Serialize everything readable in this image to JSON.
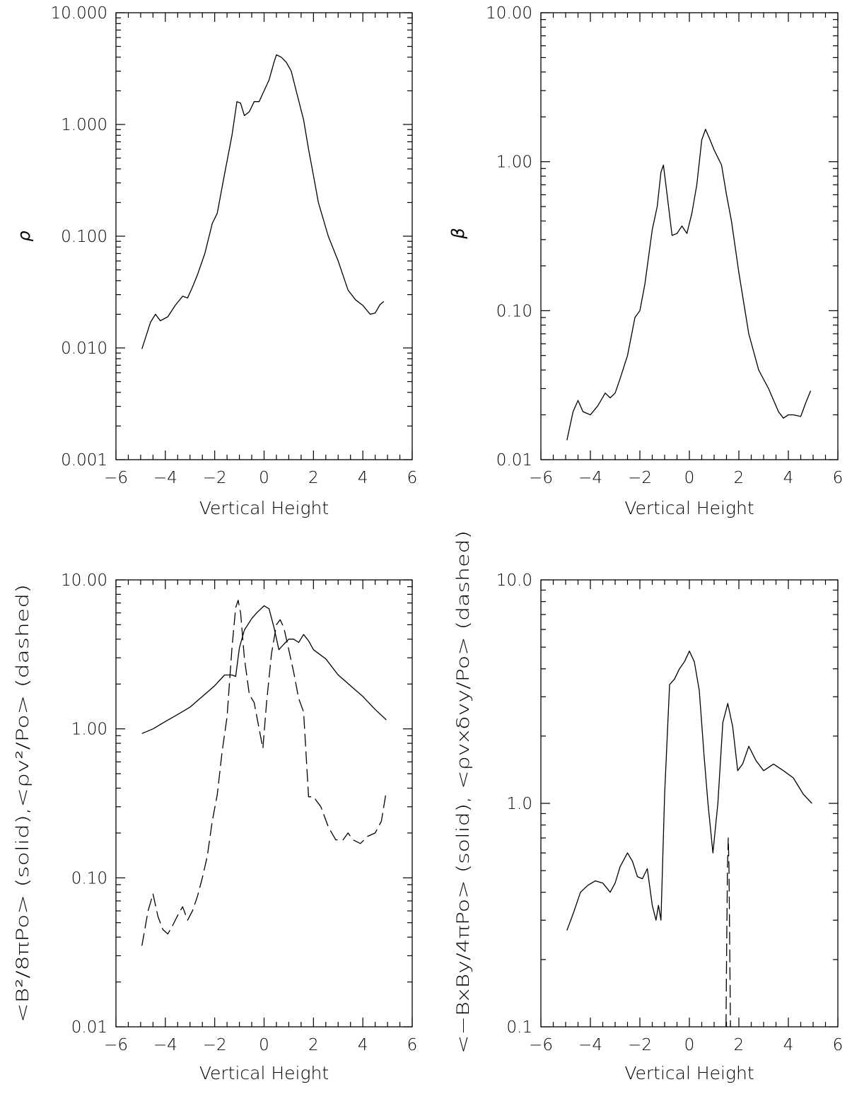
{
  "chart_data": [
    {
      "type": "line",
      "panel": "top-left",
      "title": "",
      "xlabel": "Vertical Height",
      "ylabel": "ρ",
      "yscale": "log",
      "xlim": [
        -6,
        6
      ],
      "ylim": [
        0.001,
        10
      ],
      "x_tick_values": [
        -6,
        -4,
        -2,
        0,
        2,
        4,
        6
      ],
      "x_tick_labels": [
        "−6",
        "−4",
        "−2",
        "0",
        "2",
        "4",
        "6"
      ],
      "y_tick_values": [
        0.001,
        0.01,
        0.1,
        1,
        10
      ],
      "y_tick_labels": [
        "0.001",
        "0.010",
        "0.100",
        "1.000",
        "10.000"
      ],
      "series": [
        {
          "name": "ρ",
          "style": "solid",
          "x": [
            -4.95,
            -4.6,
            -4.4,
            -4.2,
            -3.9,
            -3.6,
            -3.3,
            -3.1,
            -2.9,
            -2.7,
            -2.4,
            -2.1,
            -1.9,
            -1.6,
            -1.3,
            -1.1,
            -0.95,
            -0.8,
            -0.6,
            -0.4,
            -0.2,
            0.0,
            0.2,
            0.4,
            0.5,
            0.7,
            0.9,
            1.1,
            1.3,
            1.6,
            1.8,
            2.0,
            2.2,
            2.6,
            3.0,
            3.4,
            3.7,
            4.0,
            4.3,
            4.5,
            4.7,
            4.85
          ],
          "y": [
            0.0098,
            0.017,
            0.02,
            0.0175,
            0.019,
            0.024,
            0.029,
            0.028,
            0.035,
            0.045,
            0.07,
            0.13,
            0.16,
            0.36,
            0.8,
            1.6,
            1.55,
            1.2,
            1.3,
            1.6,
            1.6,
            2.0,
            2.5,
            3.6,
            4.2,
            4.0,
            3.6,
            3.0,
            2.0,
            1.1,
            0.6,
            0.35,
            0.2,
            0.1,
            0.06,
            0.033,
            0.027,
            0.024,
            0.02,
            0.0205,
            0.0245,
            0.026
          ]
        }
      ]
    },
    {
      "type": "line",
      "panel": "top-right",
      "title": "",
      "xlabel": "Vertical Height",
      "ylabel": "β",
      "yscale": "log",
      "xlim": [
        -6,
        6
      ],
      "ylim": [
        0.01,
        10
      ],
      "x_tick_values": [
        -6,
        -4,
        -2,
        0,
        2,
        4,
        6
      ],
      "x_tick_labels": [
        "−6",
        "−4",
        "−2",
        "0",
        "2",
        "4",
        "6"
      ],
      "y_tick_values": [
        0.01,
        0.1,
        1,
        10
      ],
      "y_tick_labels": [
        "0.01",
        "0.10",
        "1.00",
        "10.00"
      ],
      "series": [
        {
          "name": "β",
          "style": "solid",
          "x": [
            -4.95,
            -4.7,
            -4.5,
            -4.3,
            -4.0,
            -3.7,
            -3.4,
            -3.2,
            -3.0,
            -2.8,
            -2.5,
            -2.2,
            -2.0,
            -1.8,
            -1.5,
            -1.3,
            -1.15,
            -1.05,
            -0.9,
            -0.7,
            -0.5,
            -0.3,
            -0.1,
            0.1,
            0.3,
            0.5,
            0.65,
            0.8,
            1.0,
            1.3,
            1.5,
            1.7,
            2.0,
            2.4,
            2.8,
            3.2,
            3.6,
            3.8,
            4.0,
            4.2,
            4.5,
            4.7,
            4.9
          ],
          "y": [
            0.0135,
            0.021,
            0.025,
            0.021,
            0.02,
            0.023,
            0.028,
            0.026,
            0.028,
            0.035,
            0.05,
            0.09,
            0.1,
            0.15,
            0.35,
            0.5,
            0.85,
            0.95,
            0.6,
            0.32,
            0.33,
            0.37,
            0.33,
            0.45,
            0.7,
            1.4,
            1.65,
            1.45,
            1.2,
            0.95,
            0.6,
            0.4,
            0.18,
            0.07,
            0.04,
            0.03,
            0.021,
            0.019,
            0.02,
            0.02,
            0.0195,
            0.024,
            0.029
          ]
        }
      ]
    },
    {
      "type": "line",
      "panel": "bottom-left",
      "title": "",
      "xlabel": "Vertical Height",
      "ylabel": "<B²/8πPo> (solid),<ρv²/Po> (dashed)",
      "yscale": "log",
      "xlim": [
        -6,
        6
      ],
      "ylim": [
        0.01,
        10
      ],
      "x_tick_values": [
        -6,
        -4,
        -2,
        0,
        2,
        4,
        6
      ],
      "x_tick_labels": [
        "−6",
        "−4",
        "−2",
        "0",
        "2",
        "4",
        "6"
      ],
      "y_tick_values": [
        0.01,
        0.1,
        1,
        10
      ],
      "y_tick_labels": [
        "0.01",
        "0.10",
        "1.00",
        "10.00"
      ],
      "series": [
        {
          "name": "<B²/8πPo>",
          "style": "solid",
          "x": [
            -4.95,
            -4.5,
            -4.0,
            -3.5,
            -3.0,
            -2.5,
            -2.0,
            -1.6,
            -1.3,
            -1.15,
            -1.0,
            -0.8,
            -0.5,
            -0.3,
            0.0,
            0.2,
            0.4,
            0.6,
            0.8,
            1.0,
            1.2,
            1.4,
            1.6,
            1.8,
            2.0,
            2.5,
            3.0,
            3.5,
            4.0,
            4.5,
            4.95
          ],
          "y": [
            0.93,
            1.0,
            1.12,
            1.25,
            1.4,
            1.65,
            1.95,
            2.3,
            2.3,
            2.25,
            3.5,
            4.6,
            5.5,
            6.0,
            6.7,
            6.4,
            4.8,
            3.4,
            3.7,
            4.0,
            4.0,
            3.8,
            4.3,
            3.9,
            3.4,
            2.95,
            2.3,
            1.95,
            1.65,
            1.35,
            1.15
          ]
        },
        {
          "name": "<ρv²/Po>",
          "style": "dashed",
          "x": [
            -4.95,
            -4.7,
            -4.5,
            -4.3,
            -4.1,
            -3.9,
            -3.7,
            -3.5,
            -3.3,
            -3.1,
            -2.9,
            -2.7,
            -2.5,
            -2.3,
            -2.1,
            -1.9,
            -1.7,
            -1.5,
            -1.3,
            -1.15,
            -1.05,
            -0.95,
            -0.8,
            -0.6,
            -0.4,
            -0.2,
            -0.05,
            0.1,
            0.3,
            0.5,
            0.65,
            0.8,
            1.0,
            1.2,
            1.4,
            1.6,
            1.8,
            2.0,
            2.3,
            2.6,
            2.9,
            3.2,
            3.4,
            3.6,
            3.9,
            4.2,
            4.5,
            4.75,
            4.95
          ],
          "y": [
            0.035,
            0.06,
            0.078,
            0.055,
            0.045,
            0.042,
            0.048,
            0.056,
            0.064,
            0.052,
            0.06,
            0.075,
            0.1,
            0.14,
            0.24,
            0.36,
            0.7,
            1.2,
            3.5,
            6.5,
            7.3,
            6.0,
            3.0,
            1.7,
            1.5,
            1.0,
            0.74,
            1.5,
            3.2,
            5.0,
            5.4,
            4.8,
            3.4,
            2.4,
            1.6,
            1.3,
            0.35,
            0.35,
            0.3,
            0.22,
            0.18,
            0.18,
            0.2,
            0.18,
            0.17,
            0.19,
            0.2,
            0.24,
            0.38
          ]
        }
      ]
    },
    {
      "type": "line",
      "panel": "bottom-right",
      "title": "",
      "xlabel": "Vertical Height",
      "ylabel": "<−BxBy/4πPo> (solid), <ρvxδvy/Po> (dashed)",
      "yscale": "log",
      "xlim": [
        -6,
        6
      ],
      "ylim": [
        0.1,
        10
      ],
      "x_tick_values": [
        -6,
        -4,
        -2,
        0,
        2,
        4,
        6
      ],
      "x_tick_labels": [
        "−6",
        "−4",
        "−2",
        "0",
        "2",
        "4",
        "6"
      ],
      "y_tick_values": [
        0.1,
        1,
        10
      ],
      "y_tick_labels": [
        "0.1",
        "1.0",
        "10.0"
      ],
      "series": [
        {
          "name": "<−BxBy/4πPo>",
          "style": "solid",
          "x": [
            -4.95,
            -4.7,
            -4.4,
            -4.1,
            -3.8,
            -3.5,
            -3.2,
            -3.0,
            -2.8,
            -2.5,
            -2.3,
            -2.1,
            -1.9,
            -1.7,
            -1.5,
            -1.35,
            -1.25,
            -1.15,
            -1.0,
            -0.8,
            -0.6,
            -0.4,
            -0.2,
            0.0,
            0.2,
            0.4,
            0.6,
            0.75,
            0.95,
            1.15,
            1.35,
            1.55,
            1.75,
            1.95,
            2.15,
            2.4,
            2.7,
            3.0,
            3.4,
            3.8,
            4.2,
            4.6,
            4.95
          ],
          "y": [
            0.27,
            0.32,
            0.4,
            0.43,
            0.45,
            0.44,
            0.4,
            0.44,
            0.52,
            0.6,
            0.55,
            0.47,
            0.46,
            0.51,
            0.35,
            0.3,
            0.35,
            0.3,
            1.1,
            3.4,
            3.6,
            4.0,
            4.3,
            4.8,
            4.3,
            3.2,
            1.6,
            1.0,
            0.6,
            1.0,
            2.3,
            2.8,
            2.2,
            1.4,
            1.5,
            1.8,
            1.55,
            1.4,
            1.5,
            1.4,
            1.3,
            1.1,
            1.0
          ]
        },
        {
          "name": "<ρvxδvy/Po>",
          "style": "dashed",
          "x": [
            1.48,
            1.51,
            1.54,
            1.57,
            1.6,
            1.63,
            1.66
          ],
          "y": [
            0.1,
            0.24,
            0.52,
            0.7,
            0.52,
            0.24,
            0.1
          ]
        }
      ]
    }
  ]
}
